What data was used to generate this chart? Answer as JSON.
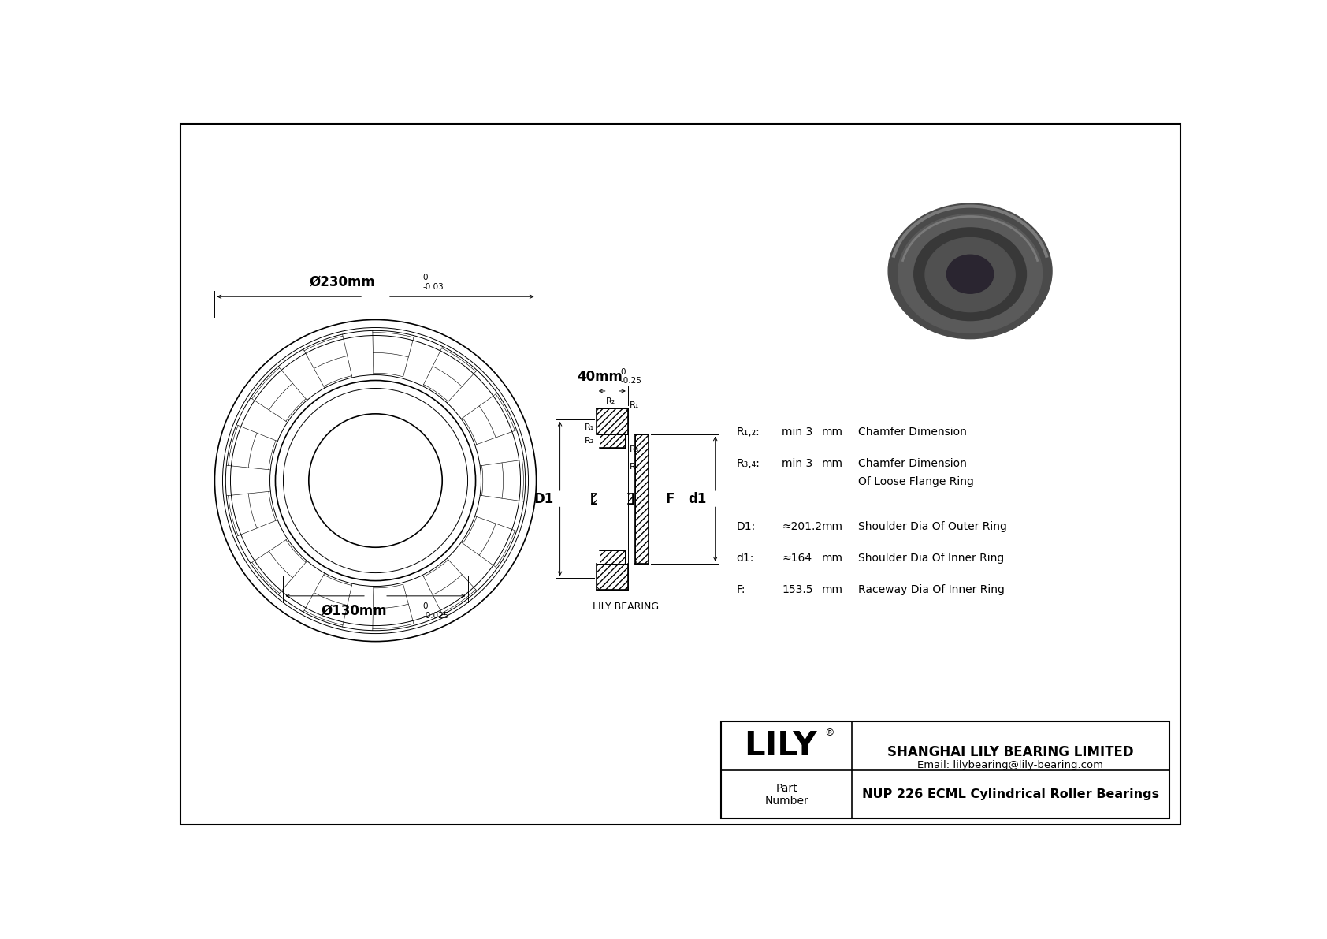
{
  "bg_color": "#ffffff",
  "drawing_color": "#000000",
  "title_company": "SHANGHAI LILY BEARING LIMITED",
  "title_email": "Email: lilybearing@lily-bearing.com",
  "part_label": "Part\nNumber",
  "part_number": "NUP 226 ECML Cylindrical Roller Bearings",
  "lily_text": "LILY",
  "brand_registered": "®",
  "lily_bearing_label": "LILY BEARING",
  "dim_outer": "Ø230mm",
  "dim_outer_tol_top": "0",
  "dim_outer_tol_bot": "-0.03",
  "dim_inner": "Ø130mm",
  "dim_inner_tol_top": "0",
  "dim_inner_tol_bot": "-0.025",
  "dim_width": "40mm",
  "dim_width_tol_top": "0",
  "dim_width_tol_bot": "-0.25",
  "param_r12_label": "R₁,₂:",
  "param_r12_value": "min 3",
  "param_r12_unit": "mm",
  "param_r12_desc": "Chamfer Dimension",
  "param_r34_label": "R₃,₄:",
  "param_r34_value": "min 3",
  "param_r34_unit": "mm",
  "param_r34_desc": "Chamfer Dimension",
  "param_r34_desc2": "Of Loose Flange Ring",
  "param_D1_label": "D1:",
  "param_D1_value": "≈201.2",
  "param_D1_unit": "mm",
  "param_D1_desc": "Shoulder Dia Of Outer Ring",
  "param_d1_label": "d1:",
  "param_d1_value": "≈164",
  "param_d1_unit": "mm",
  "param_d1_desc": "Shoulder Dia Of Inner Ring",
  "param_F_label": "F:",
  "param_F_value": "153.5",
  "param_F_unit": "mm",
  "param_F_desc": "Raceway Dia Of Inner Ring",
  "photo_colors": {
    "outer_dark": "#4a4a4a",
    "outer_mid": "#5a5a5a",
    "outer_light": "#6e6e6e",
    "inner_dark": "#3a3a3a",
    "inner_mid": "#505050",
    "bore": "#2a2530",
    "groove": "#383838",
    "highlight": "#7a7a7a"
  }
}
